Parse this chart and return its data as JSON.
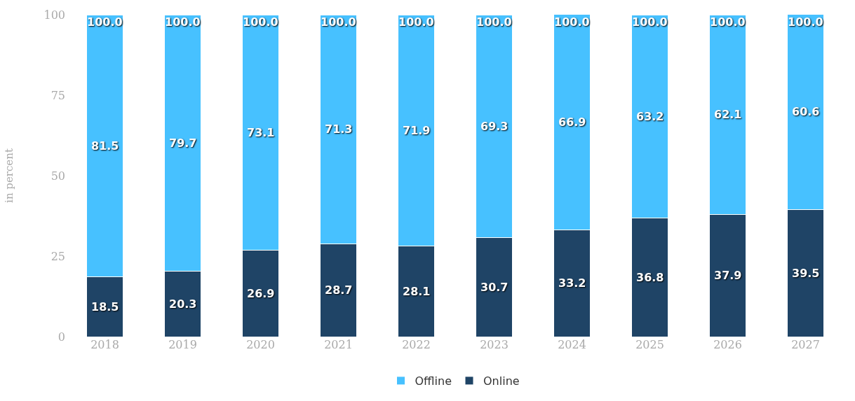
{
  "chart_data": {
    "type": "bar",
    "stacked": true,
    "ylabel": "in percent",
    "categories": [
      "2018",
      "2019",
      "2020",
      "2021",
      "2022",
      "2023",
      "2024",
      "2025",
      "2026",
      "2027"
    ],
    "series": [
      {
        "name": "Online",
        "color": "#1f4466",
        "values": [
          18.5,
          20.3,
          26.9,
          28.7,
          28.1,
          30.7,
          33.2,
          36.8,
          37.9,
          39.5
        ]
      },
      {
        "name": "Offline",
        "color": "#47c1ff",
        "values": [
          81.5,
          79.7,
          73.1,
          71.3,
          71.9,
          69.3,
          66.9,
          63.2,
          62.1,
          60.6
        ]
      }
    ],
    "totals": [
      "100.0",
      "100.0",
      "100.0",
      "100.0",
      "100.0",
      "100.0",
      "100.0",
      "100.0",
      "100.0",
      "100.0"
    ],
    "data_labels": true,
    "ylim": [
      0,
      100
    ],
    "yticks": [
      0,
      25,
      50,
      75,
      100
    ],
    "grid": false,
    "legend": "bottom"
  }
}
